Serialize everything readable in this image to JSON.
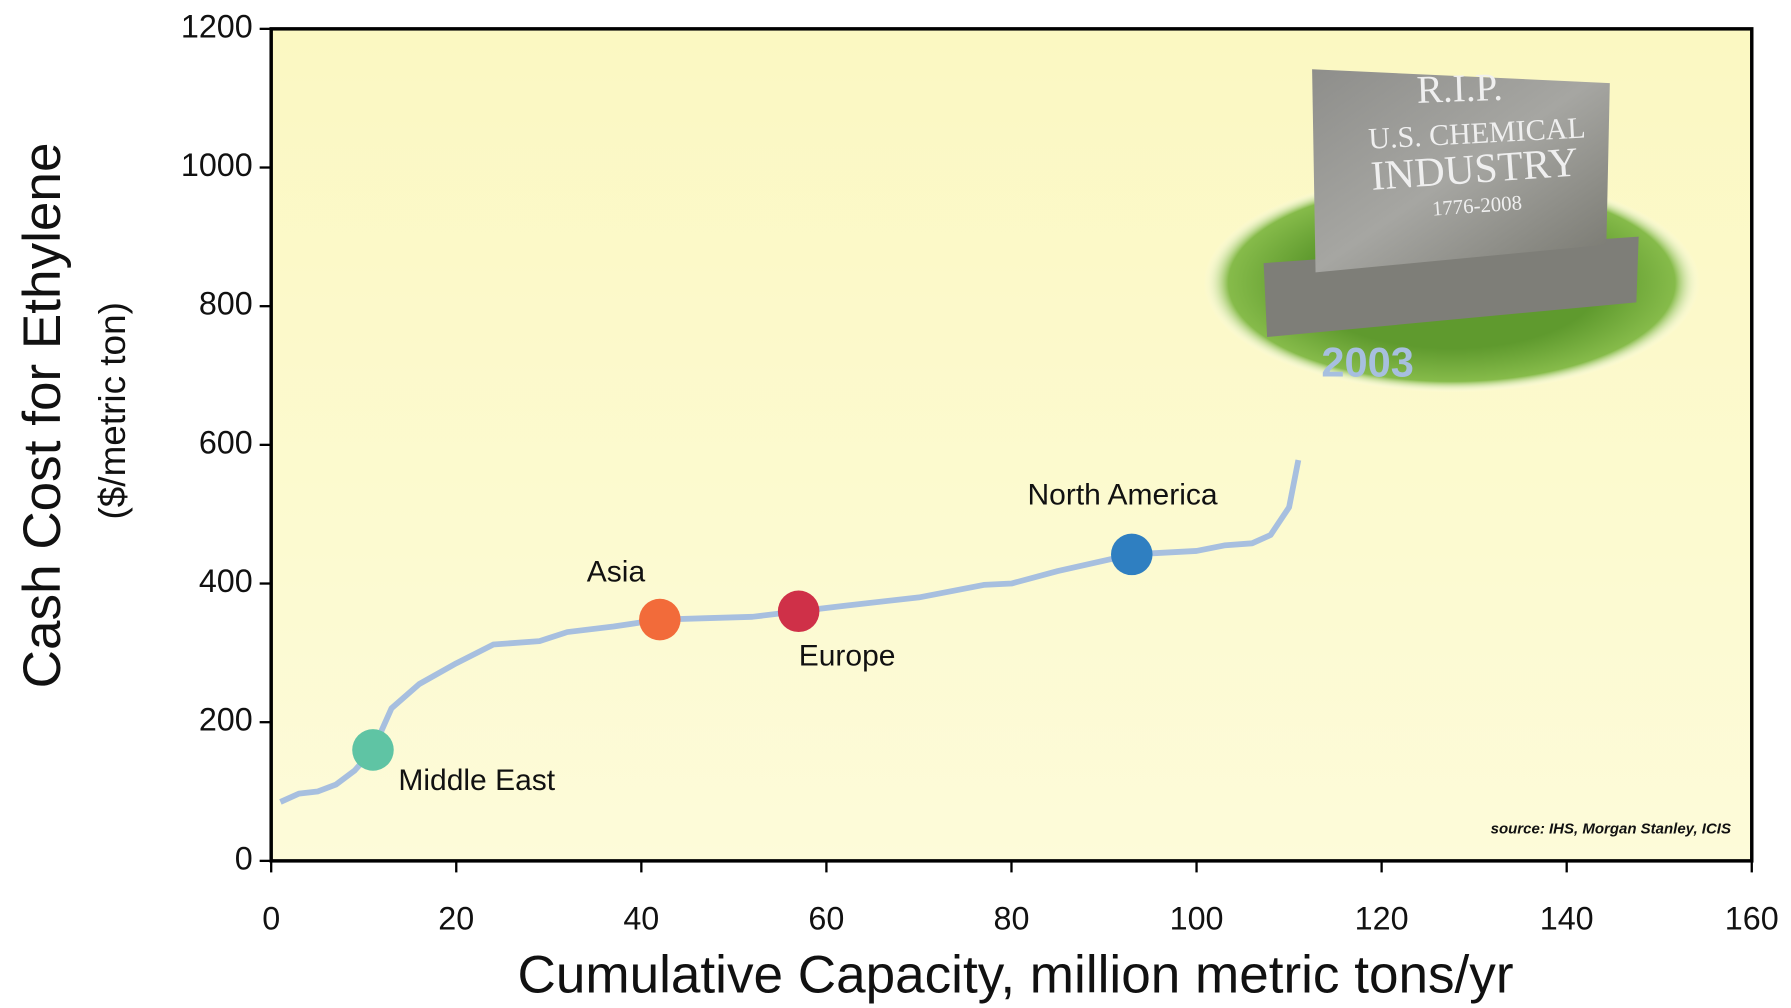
{
  "chart_data": {
    "type": "line",
    "xlabel": "Cumulative Capacity, million metric tons/yr",
    "ylabel": "Cash Cost for Ethylene",
    "ylabel_sub": "($/metric ton)",
    "xlim": [
      0,
      160
    ],
    "xticks": [
      0,
      20,
      40,
      60,
      80,
      100,
      120,
      140,
      160
    ],
    "ylim": [
      0,
      1200
    ],
    "yticks": [
      0,
      200,
      400,
      600,
      800,
      1000,
      1200
    ],
    "series": [
      {
        "name": "2003",
        "color": "#a7bfdf",
        "x": [
          1,
          3,
          5,
          7,
          9,
          11,
          13,
          16,
          20,
          24,
          29,
          32,
          37,
          42,
          47,
          52,
          57,
          62,
          70,
          77,
          80,
          85,
          93,
          100,
          103,
          106,
          108,
          110,
          111
        ],
        "values": [
          85,
          97,
          100,
          110,
          130,
          160,
          220,
          255,
          285,
          312,
          317,
          330,
          338,
          348,
          350,
          352,
          360,
          368,
          380,
          398,
          400,
          418,
          442,
          447,
          455,
          458,
          470,
          510,
          578
        ]
      }
    ],
    "points": [
      {
        "label": "Middle East",
        "x": 11,
        "y": 160,
        "color": "#5fc4a4"
      },
      {
        "label": "Asia",
        "x": 42,
        "y": 348,
        "color": "#f26b3a"
      },
      {
        "label": "Europe",
        "x": 57,
        "y": 360,
        "color": "#cf3048"
      },
      {
        "label": "North America",
        "x": 93,
        "y": 442,
        "color": "#2f7fc1"
      }
    ],
    "source": "source:  IHS, Morgan Stanley, ICIS",
    "image_text": [
      "R.I.P.",
      "U.S. CHEMICAL",
      "INDUSTRY",
      "1776-2008"
    ]
  }
}
